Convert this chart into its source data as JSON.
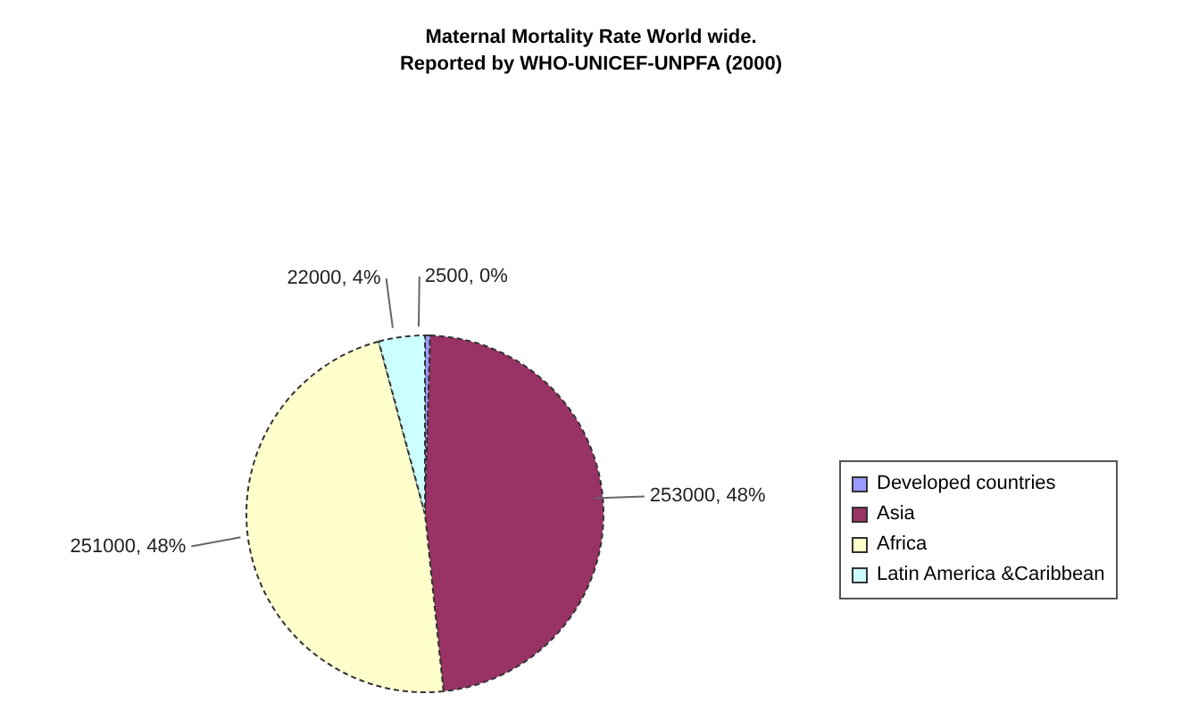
{
  "chart_data": {
    "type": "pie",
    "title": "Maternal Mortality Rate World wide.",
    "subtitle": "Reported by WHO-UNICEF-UNPFA (2000)",
    "categories": [
      "Developed countries",
      "Asia",
      "Africa",
      "Latin America &Caribbean"
    ],
    "values": [
      2500,
      253000,
      251000,
      22000
    ],
    "value_labels": [
      "2500, 0%",
      "253000, 48%",
      "251000, 48%",
      "22000, 4%"
    ],
    "colors": [
      "#9999ff",
      "#993366",
      "#ffffcc",
      "#ccffff"
    ],
    "legend": "right"
  }
}
